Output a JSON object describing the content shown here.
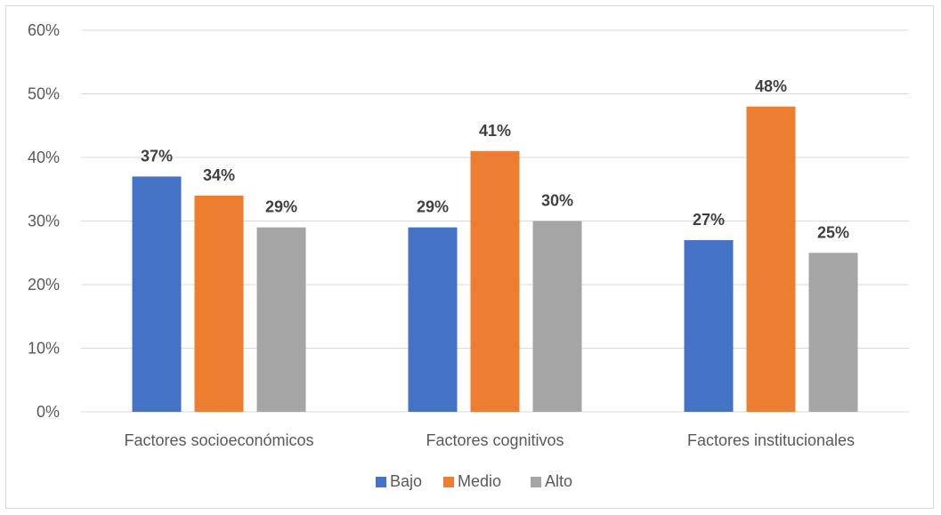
{
  "chart_data": {
    "type": "bar",
    "categories": [
      "Factores socioeconómicos",
      "Factores cognitivos",
      "Factores institucionales"
    ],
    "series": [
      {
        "name": "Bajo",
        "color": "#4472C4",
        "values": [
          37,
          29,
          27
        ],
        "labels": [
          "37%",
          "29%",
          "27%"
        ]
      },
      {
        "name": "Medio",
        "color": "#ED7D31",
        "values": [
          34,
          41,
          48
        ],
        "labels": [
          "34%",
          "41%",
          "48%"
        ]
      },
      {
        "name": "Alto",
        "color": "#A5A5A5",
        "values": [
          29,
          30,
          25
        ],
        "labels": [
          "29%",
          "30%",
          "25%"
        ]
      }
    ],
    "ylim": [
      0,
      60
    ],
    "yticks": [
      0,
      10,
      20,
      30,
      40,
      50,
      60
    ],
    "ytick_labels": [
      "0%",
      "10%",
      "20%",
      "30%",
      "40%",
      "50%",
      "60%"
    ],
    "grid": true,
    "legend_position": "bottom",
    "title": "",
    "xlabel": "",
    "ylabel": ""
  }
}
